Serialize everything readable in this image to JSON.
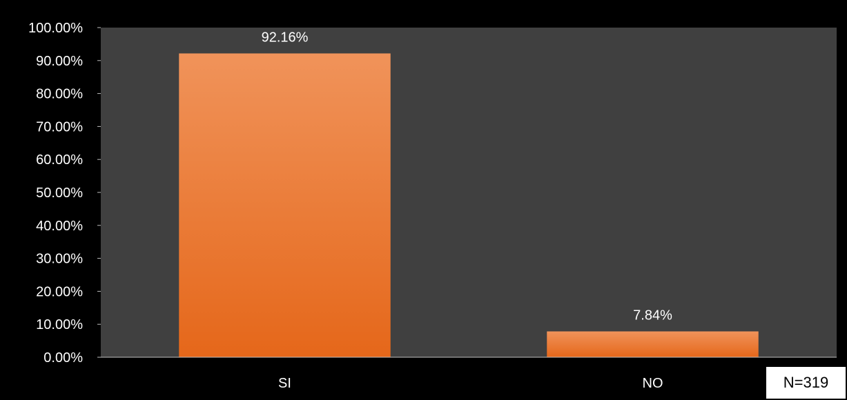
{
  "chart_data": {
    "type": "bar",
    "categories": [
      "SI",
      "NO"
    ],
    "values": [
      92.16,
      7.84
    ],
    "data_labels": [
      "92.16%",
      "7.84%"
    ],
    "ylim": [
      0,
      100
    ],
    "yticks": [
      0,
      10,
      20,
      30,
      40,
      50,
      60,
      70,
      80,
      90,
      100
    ],
    "ytick_labels": [
      "0.00%",
      "10.00%",
      "20.00%",
      "30.00%",
      "40.00%",
      "50.00%",
      "60.00%",
      "70.00%",
      "80.00%",
      "90.00%",
      "100.00%"
    ],
    "title": "",
    "xlabel": "",
    "ylabel": "",
    "grid": false,
    "legend": "none",
    "colors": {
      "figure_background": "#000000",
      "plot_background": "#404040",
      "bar_top": "#f0935a",
      "bar_bottom": "#e5671a",
      "text": "#ffffff"
    }
  },
  "annotation": {
    "sample_size": "N=319"
  }
}
